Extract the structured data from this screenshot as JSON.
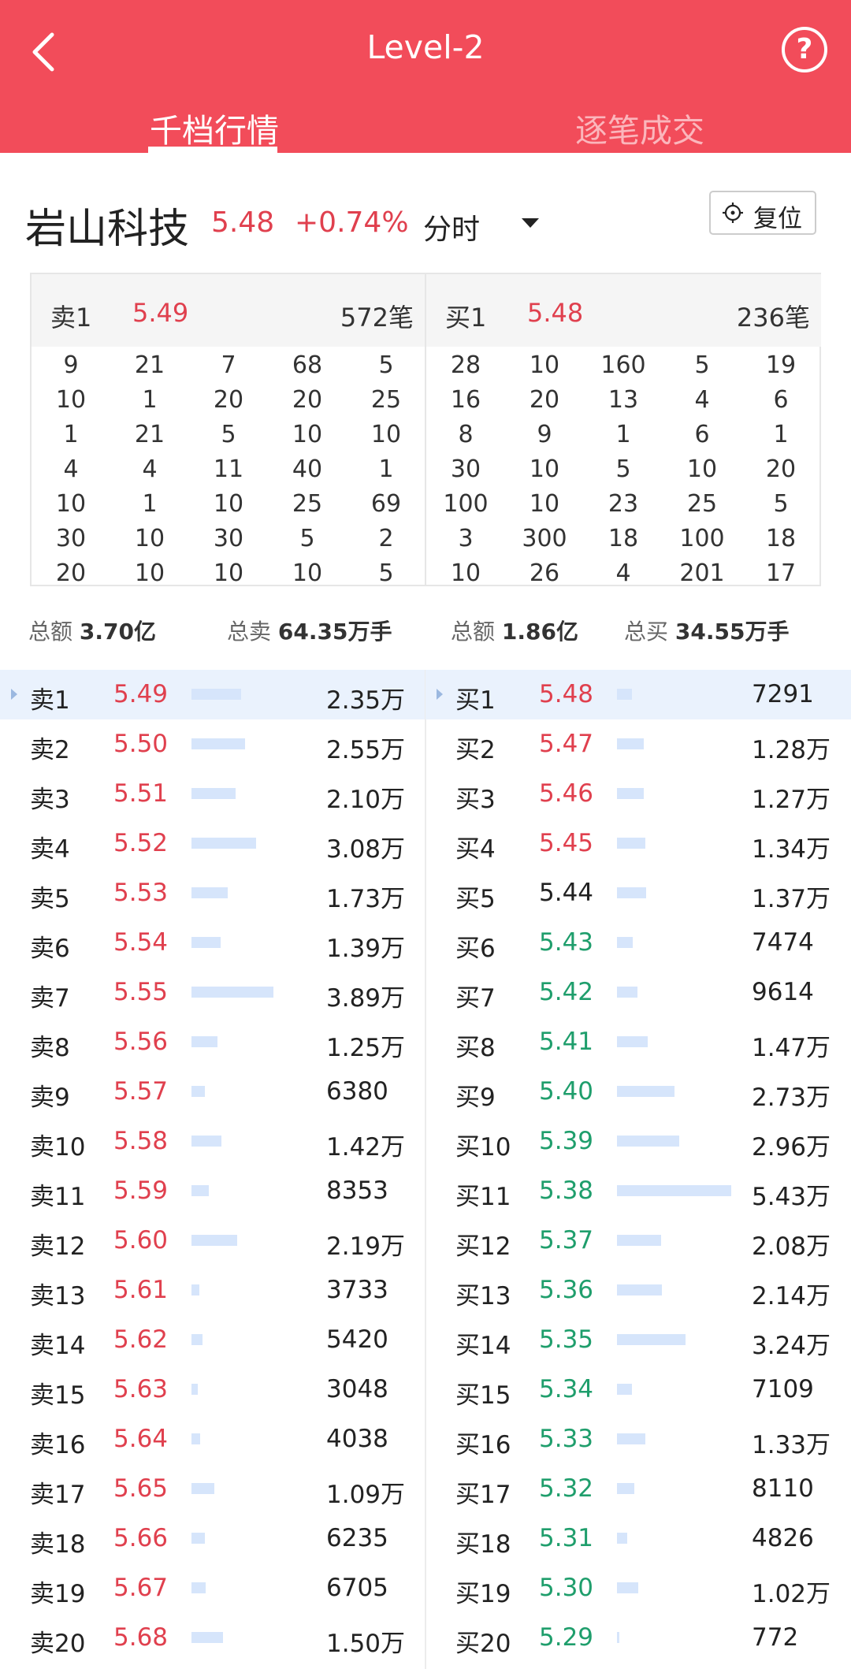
{
  "header": {
    "title": "Level-2",
    "help_label": "?",
    "tabs": [
      {
        "label": "千档行情",
        "active": true
      },
      {
        "label": "逐笔成交",
        "active": false
      }
    ]
  },
  "stock": {
    "name": "岩山科技",
    "price": "5.48",
    "change": "+0.74%",
    "period": "分时",
    "reset_label": "复位"
  },
  "ticks": {
    "sell": {
      "label": "卖1",
      "price": "5.49",
      "count": "572笔",
      "rows": [
        [
          "9",
          "21",
          "7",
          "68",
          "5"
        ],
        [
          "10",
          "1",
          "20",
          "20",
          "25"
        ],
        [
          "1",
          "21",
          "5",
          "10",
          "10"
        ],
        [
          "4",
          "4",
          "11",
          "40",
          "1"
        ],
        [
          "10",
          "1",
          "10",
          "25",
          "69"
        ],
        [
          "30",
          "10",
          "30",
          "5",
          "2"
        ],
        [
          "20",
          "10",
          "10",
          "10",
          "5"
        ]
      ]
    },
    "buy": {
      "label": "买1",
      "price": "5.48",
      "count": "236笔",
      "rows": [
        [
          "28",
          "10",
          "160",
          "5",
          "19"
        ],
        [
          "16",
          "20",
          "13",
          "4",
          "6"
        ],
        [
          "8",
          "9",
          "1",
          "6",
          "1"
        ],
        [
          "30",
          "10",
          "5",
          "10",
          "20"
        ],
        [
          "100",
          "10",
          "23",
          "25",
          "5"
        ],
        [
          "3",
          "300",
          "18",
          "100",
          "18"
        ],
        [
          "10",
          "26",
          "4",
          "201",
          "17"
        ]
      ]
    }
  },
  "summary": {
    "sell_total_label": "总额",
    "sell_total_value": "3.70亿",
    "sell_vol_label": "总卖",
    "sell_vol_value": "64.35万手",
    "buy_total_label": "总额",
    "buy_total_value": "1.86亿",
    "buy_vol_label": "总买",
    "buy_vol_value": "34.55万手"
  },
  "colors": {
    "header_red": "#f24c5a",
    "up_red": "#e0404e",
    "down_green": "#1f9e6c",
    "bar_blue": "#d6e5fb",
    "highlight_row": "#eaf2fd"
  },
  "order_book": {
    "sell": [
      {
        "label": "卖1",
        "price": "5.49",
        "volume": "2.35万",
        "vol_value": 23500
      },
      {
        "label": "卖2",
        "price": "5.50",
        "volume": "2.55万",
        "vol_value": 25500
      },
      {
        "label": "卖3",
        "price": "5.51",
        "volume": "2.10万",
        "vol_value": 21000
      },
      {
        "label": "卖4",
        "price": "5.52",
        "volume": "3.08万",
        "vol_value": 30800
      },
      {
        "label": "卖5",
        "price": "5.53",
        "volume": "1.73万",
        "vol_value": 17300
      },
      {
        "label": "卖6",
        "price": "5.54",
        "volume": "1.39万",
        "vol_value": 13900
      },
      {
        "label": "卖7",
        "price": "5.55",
        "volume": "3.89万",
        "vol_value": 38900
      },
      {
        "label": "卖8",
        "price": "5.56",
        "volume": "1.25万",
        "vol_value": 12500
      },
      {
        "label": "卖9",
        "price": "5.57",
        "volume": "6380",
        "vol_value": 6380
      },
      {
        "label": "卖10",
        "price": "5.58",
        "volume": "1.42万",
        "vol_value": 14200
      },
      {
        "label": "卖11",
        "price": "5.59",
        "volume": "8353",
        "vol_value": 8353
      },
      {
        "label": "卖12",
        "price": "5.60",
        "volume": "2.19万",
        "vol_value": 21900
      },
      {
        "label": "卖13",
        "price": "5.61",
        "volume": "3733",
        "vol_value": 3733
      },
      {
        "label": "卖14",
        "price": "5.62",
        "volume": "5420",
        "vol_value": 5420
      },
      {
        "label": "卖15",
        "price": "5.63",
        "volume": "3048",
        "vol_value": 3048
      },
      {
        "label": "卖16",
        "price": "5.64",
        "volume": "4038",
        "vol_value": 4038
      },
      {
        "label": "卖17",
        "price": "5.65",
        "volume": "1.09万",
        "vol_value": 10900
      },
      {
        "label": "卖18",
        "price": "5.66",
        "volume": "6235",
        "vol_value": 6235
      },
      {
        "label": "卖19",
        "price": "5.67",
        "volume": "6705",
        "vol_value": 6705
      },
      {
        "label": "卖20",
        "price": "5.68",
        "volume": "1.50万",
        "vol_value": 15000
      }
    ],
    "buy": [
      {
        "label": "买1",
        "price": "5.48",
        "volume": "7291",
        "vol_value": 7291,
        "dir": "up"
      },
      {
        "label": "买2",
        "price": "5.47",
        "volume": "1.28万",
        "vol_value": 12800,
        "dir": "up"
      },
      {
        "label": "买3",
        "price": "5.46",
        "volume": "1.27万",
        "vol_value": 12700,
        "dir": "up"
      },
      {
        "label": "买4",
        "price": "5.45",
        "volume": "1.34万",
        "vol_value": 13400,
        "dir": "up"
      },
      {
        "label": "买5",
        "price": "5.44",
        "volume": "1.37万",
        "vol_value": 13700,
        "dir": "flat"
      },
      {
        "label": "买6",
        "price": "5.43",
        "volume": "7474",
        "vol_value": 7474,
        "dir": "down"
      },
      {
        "label": "买7",
        "price": "5.42",
        "volume": "9614",
        "vol_value": 9614,
        "dir": "down"
      },
      {
        "label": "买8",
        "price": "5.41",
        "volume": "1.47万",
        "vol_value": 14700,
        "dir": "down"
      },
      {
        "label": "买9",
        "price": "5.40",
        "volume": "2.73万",
        "vol_value": 27300,
        "dir": "down"
      },
      {
        "label": "买10",
        "price": "5.39",
        "volume": "2.96万",
        "vol_value": 29600,
        "dir": "down"
      },
      {
        "label": "买11",
        "price": "5.38",
        "volume": "5.43万",
        "vol_value": 54300,
        "dir": "down"
      },
      {
        "label": "买12",
        "price": "5.37",
        "volume": "2.08万",
        "vol_value": 20800,
        "dir": "down"
      },
      {
        "label": "买13",
        "price": "5.36",
        "volume": "2.14万",
        "vol_value": 21400,
        "dir": "down"
      },
      {
        "label": "买14",
        "price": "5.35",
        "volume": "3.24万",
        "vol_value": 32400,
        "dir": "down"
      },
      {
        "label": "买15",
        "price": "5.34",
        "volume": "7109",
        "vol_value": 7109,
        "dir": "down"
      },
      {
        "label": "买16",
        "price": "5.33",
        "volume": "1.33万",
        "vol_value": 13300,
        "dir": "down"
      },
      {
        "label": "买17",
        "price": "5.32",
        "volume": "8110",
        "vol_value": 8110,
        "dir": "down"
      },
      {
        "label": "买18",
        "price": "5.31",
        "volume": "4826",
        "vol_value": 4826,
        "dir": "down"
      },
      {
        "label": "买19",
        "price": "5.30",
        "volume": "1.02万",
        "vol_value": 10200,
        "dir": "down"
      },
      {
        "label": "买20",
        "price": "5.29",
        "volume": "772",
        "vol_value": 772,
        "dir": "down"
      }
    ]
  }
}
